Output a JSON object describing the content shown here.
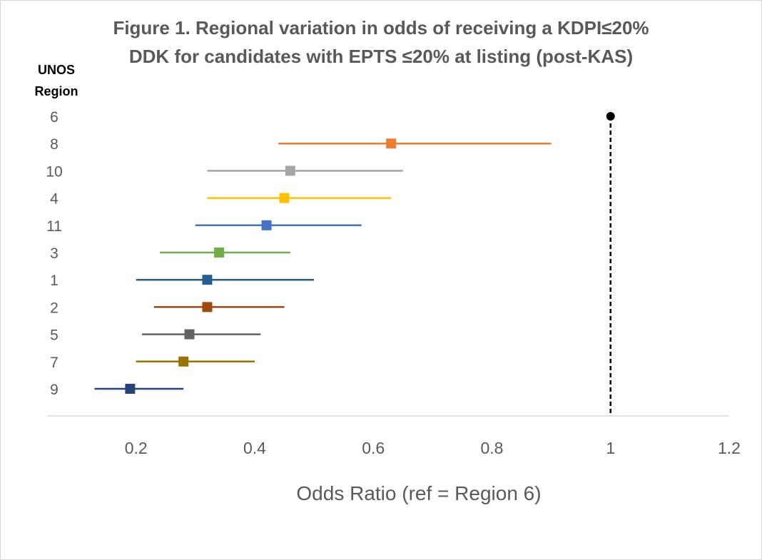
{
  "chart_data": {
    "type": "scatter",
    "title_line1": "Figure 1. Regional variation in odds of receiving a KDPI≤20%",
    "title_line2": "DDK for candidates with EPTS ≤20% at listing (post-KAS)",
    "ylabel_line1": "UNOS",
    "ylabel_line2": "Region",
    "xlabel": "Odds Ratio (ref = Region 6)",
    "xlim": [
      0.05,
      1.2
    ],
    "xticks": [
      0.2,
      0.4,
      0.6,
      0.8,
      1,
      1.2
    ],
    "xtick_labels": [
      "0.2",
      "0.4",
      "0.6",
      "0.8",
      "1",
      "1.2"
    ],
    "reference_line": 1,
    "rows": [
      {
        "region": "6",
        "or": 1.0,
        "lower": null,
        "upper": null,
        "color": "#000000",
        "marker": "circle"
      },
      {
        "region": "8",
        "or": 0.63,
        "lower": 0.44,
        "upper": 0.9,
        "color": "#ED7D31",
        "marker": "square"
      },
      {
        "region": "10",
        "or": 0.46,
        "lower": 0.32,
        "upper": 0.65,
        "color": "#A5A5A5",
        "marker": "square"
      },
      {
        "region": "4",
        "or": 0.45,
        "lower": 0.32,
        "upper": 0.63,
        "color": "#FFC000",
        "marker": "square"
      },
      {
        "region": "11",
        "or": 0.42,
        "lower": 0.3,
        "upper": 0.58,
        "color": "#4472C4",
        "marker": "square"
      },
      {
        "region": "3",
        "or": 0.34,
        "lower": 0.24,
        "upper": 0.46,
        "color": "#70AD47",
        "marker": "square"
      },
      {
        "region": "1",
        "or": 0.32,
        "lower": 0.2,
        "upper": 0.5,
        "color": "#255E91",
        "marker": "square"
      },
      {
        "region": "2",
        "or": 0.32,
        "lower": 0.23,
        "upper": 0.45,
        "color": "#9E480E",
        "marker": "square"
      },
      {
        "region": "5",
        "or": 0.29,
        "lower": 0.21,
        "upper": 0.41,
        "color": "#636363",
        "marker": "square"
      },
      {
        "region": "7",
        "or": 0.28,
        "lower": 0.2,
        "upper": 0.4,
        "color": "#997300",
        "marker": "square"
      },
      {
        "region": "9",
        "or": 0.19,
        "lower": 0.13,
        "upper": 0.28,
        "color": "#264478",
        "marker": "square"
      }
    ]
  }
}
